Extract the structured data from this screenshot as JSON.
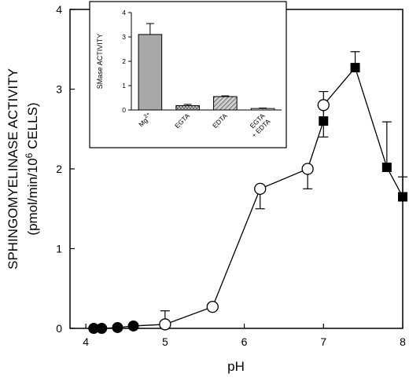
{
  "chart_data": [
    {
      "type": "line",
      "title": "",
      "xlabel": "pH",
      "ylabel": "SPHINGOMYELINASE ACTIVITY",
      "ylabel_unit_prefix": "(pmol/min/10",
      "ylabel_unit_exp": "6",
      "ylabel_unit_suffix": " CELLS)",
      "xlim": [
        3.8,
        8.0
      ],
      "ylim": [
        0,
        4
      ],
      "x_ticks": [
        4,
        5,
        6,
        7,
        8
      ],
      "x_tick_labels": [
        "4",
        "5",
        "6",
        "7",
        "8"
      ],
      "y_ticks": [
        0,
        1,
        2,
        3,
        4
      ],
      "y_tick_labels": [
        "0",
        "1",
        "2",
        "3",
        "4"
      ],
      "grid": false,
      "line_path": [
        {
          "x": 4.1,
          "y": 0.0
        },
        {
          "x": 4.2,
          "y": 0.0
        },
        {
          "x": 4.4,
          "y": 0.01
        },
        {
          "x": 4.6,
          "y": 0.03
        },
        {
          "x": 5.0,
          "y": 0.05
        },
        {
          "x": 5.6,
          "y": 0.27
        },
        {
          "x": 6.2,
          "y": 1.75
        },
        {
          "x": 6.8,
          "y": 2.0
        },
        {
          "x": 7.0,
          "y": 2.6
        },
        {
          "x": 7.0,
          "y": 2.8
        },
        {
          "x": 7.4,
          "y": 3.27
        },
        {
          "x": 7.8,
          "y": 2.02
        },
        {
          "x": 8.0,
          "y": 1.65
        }
      ],
      "series": [
        {
          "marker": "filled-circle",
          "points": [
            {
              "x": 4.1,
              "y": 0.0
            },
            {
              "x": 4.2,
              "y": 0.0
            },
            {
              "x": 4.4,
              "y": 0.01
            },
            {
              "x": 4.6,
              "y": 0.03
            }
          ]
        },
        {
          "marker": "open-circle",
          "points": [
            {
              "x": 5.0,
              "y": 0.05,
              "err_up": 0.17
            },
            {
              "x": 5.6,
              "y": 0.27
            },
            {
              "x": 6.2,
              "y": 1.75,
              "err_down": 0.25
            },
            {
              "x": 6.8,
              "y": 2.0,
              "err_down": 0.25
            },
            {
              "x": 7.0,
              "y": 2.8,
              "err_up": 0.17
            }
          ]
        },
        {
          "marker": "filled-square",
          "points": [
            {
              "x": 7.0,
              "y": 2.6,
              "err_down": 0.2
            },
            {
              "x": 7.4,
              "y": 3.27,
              "err_up": 0.2
            },
            {
              "x": 7.8,
              "y": 2.02,
              "err_up": 0.57
            },
            {
              "x": 8.0,
              "y": 1.65,
              "err_up": 0.25
            }
          ]
        }
      ]
    },
    {
      "type": "bar",
      "title": "",
      "xlabel": "",
      "ylabel": "SMase ACTIVITY",
      "ylim": [
        0,
        4
      ],
      "y_ticks": [
        0,
        1,
        2,
        3,
        4
      ],
      "y_tick_labels": [
        "0",
        "1",
        "2",
        "3",
        "4"
      ],
      "categories": [
        "Mg2+",
        "EGTA",
        "EDTA",
        "EGTA + EDTA"
      ],
      "category_labels": [
        {
          "lines": [
            "Mg"
          ],
          "sup": "2+"
        },
        {
          "lines": [
            "EGTA"
          ],
          "sup": ""
        },
        {
          "lines": [
            "EDTA"
          ],
          "sup": ""
        },
        {
          "lines": [
            "EGTA",
            "+ EDTA"
          ],
          "sup": ""
        }
      ],
      "values": [
        3.1,
        0.18,
        0.55,
        0.06
      ],
      "errors": [
        0.45,
        0.05,
        0.03,
        0.02
      ],
      "fills": [
        "solid",
        "crosshatch",
        "diagonal",
        "none"
      ],
      "colors": {
        "bar_fill": "#a8a8a8"
      }
    }
  ]
}
